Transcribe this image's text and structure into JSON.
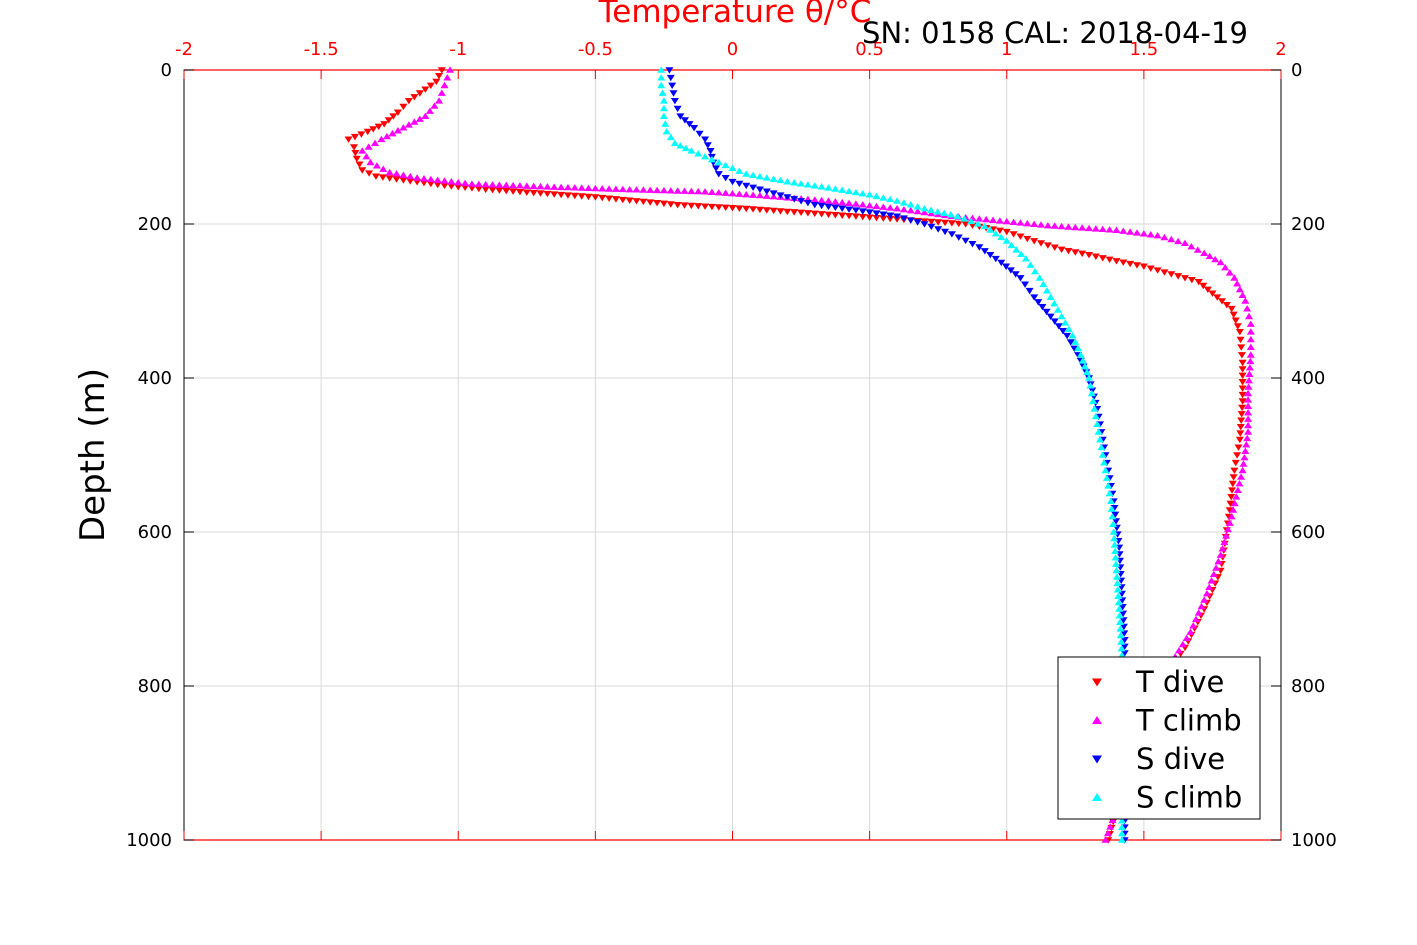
{
  "chart_data": {
    "type": "scatter",
    "title": "SN: 0158  CAL: 2018-04-19",
    "xlabel": "Temperature θ/°C",
    "ylabel": "Depth (m)",
    "xlim": [
      -2,
      2
    ],
    "ylim": [
      0,
      1000
    ],
    "y_reversed": true,
    "grid": true,
    "legend_position": "bottom-right",
    "x_ticks": [
      "-2",
      "-1.5",
      "-1",
      "-0.5",
      "0",
      "0.5",
      "1",
      "1.5",
      "2"
    ],
    "y_ticks": [
      "0",
      "200",
      "400",
      "600",
      "800",
      "1000"
    ],
    "colors": {
      "x_axis": "#ff0000",
      "grid": "#d9d9d9",
      "frame": "#000000"
    },
    "legend": [
      "T dive",
      "T climb",
      "S dive",
      "S climb"
    ],
    "series": [
      {
        "name": "T dive",
        "color": "#ff0000",
        "marker": "triangle-down",
        "points": [
          [
            -1.06,
            0
          ],
          [
            -1.08,
            15
          ],
          [
            -1.12,
            25
          ],
          [
            -1.18,
            40
          ],
          [
            -1.22,
            55
          ],
          [
            -1.27,
            70
          ],
          [
            -1.33,
            80
          ],
          [
            -1.4,
            90
          ],
          [
            -1.38,
            100
          ],
          [
            -1.37,
            115
          ],
          [
            -1.35,
            130
          ],
          [
            -1.3,
            138
          ],
          [
            -1.2,
            143
          ],
          [
            -1.05,
            150
          ],
          [
            -0.9,
            155
          ],
          [
            -0.7,
            160
          ],
          [
            -0.5,
            165
          ],
          [
            -0.35,
            170
          ],
          [
            -0.2,
            175
          ],
          [
            0.05,
            180
          ],
          [
            0.25,
            185
          ],
          [
            0.45,
            190
          ],
          [
            0.65,
            195
          ],
          [
            0.85,
            200
          ],
          [
            1.0,
            210
          ],
          [
            1.1,
            222
          ],
          [
            1.2,
            233
          ],
          [
            1.3,
            240
          ],
          [
            1.4,
            248
          ],
          [
            1.5,
            255
          ],
          [
            1.6,
            265
          ],
          [
            1.7,
            275
          ],
          [
            1.75,
            290
          ],
          [
            1.82,
            310
          ],
          [
            1.85,
            340
          ],
          [
            1.86,
            380
          ],
          [
            1.86,
            430
          ],
          [
            1.85,
            480
          ],
          [
            1.83,
            520
          ],
          [
            1.81,
            580
          ],
          [
            1.78,
            650
          ],
          [
            1.72,
            700
          ],
          [
            1.65,
            750
          ],
          [
            1.57,
            790
          ],
          [
            1.5,
            850
          ],
          [
            1.45,
            910
          ],
          [
            1.4,
            960
          ],
          [
            1.37,
            1000
          ]
        ]
      },
      {
        "name": "T climb",
        "color": "#ff00ff",
        "marker": "triangle-up",
        "points": [
          [
            -1.03,
            0
          ],
          [
            -1.05,
            20
          ],
          [
            -1.07,
            40
          ],
          [
            -1.12,
            60
          ],
          [
            -1.2,
            75
          ],
          [
            -1.28,
            90
          ],
          [
            -1.35,
            105
          ],
          [
            -1.32,
            120
          ],
          [
            -1.25,
            133
          ],
          [
            -1.15,
            140
          ],
          [
            -0.95,
            148
          ],
          [
            -0.65,
            152
          ],
          [
            -0.4,
            155
          ],
          [
            -0.1,
            158
          ],
          [
            0.1,
            163
          ],
          [
            0.35,
            170
          ],
          [
            0.6,
            180
          ],
          [
            0.8,
            190
          ],
          [
            0.95,
            195
          ],
          [
            1.15,
            202
          ],
          [
            1.4,
            208
          ],
          [
            1.55,
            215
          ],
          [
            1.65,
            225
          ],
          [
            1.72,
            238
          ],
          [
            1.78,
            250
          ],
          [
            1.83,
            270
          ],
          [
            1.87,
            300
          ],
          [
            1.89,
            330
          ],
          [
            1.89,
            370
          ],
          [
            1.88,
            420
          ],
          [
            1.88,
            470
          ],
          [
            1.86,
            520
          ],
          [
            1.82,
            580
          ],
          [
            1.78,
            630
          ],
          [
            1.73,
            680
          ],
          [
            1.67,
            730
          ],
          [
            1.6,
            770
          ],
          [
            1.54,
            820
          ],
          [
            1.48,
            880
          ],
          [
            1.42,
            940
          ],
          [
            1.36,
            1000
          ]
        ]
      },
      {
        "name": "S dive",
        "color": "#0000ff",
        "marker": "triangle-down",
        "points": [
          [
            -0.23,
            0
          ],
          [
            -0.22,
            20
          ],
          [
            -0.21,
            40
          ],
          [
            -0.19,
            60
          ],
          [
            -0.14,
            75
          ],
          [
            -0.1,
            90
          ],
          [
            -0.08,
            105
          ],
          [
            -0.07,
            120
          ],
          [
            -0.05,
            135
          ],
          [
            0.0,
            145
          ],
          [
            0.1,
            155
          ],
          [
            0.2,
            165
          ],
          [
            0.3,
            175
          ],
          [
            0.45,
            182
          ],
          [
            0.6,
            190
          ],
          [
            0.7,
            200
          ],
          [
            0.8,
            213
          ],
          [
            0.9,
            230
          ],
          [
            0.98,
            250
          ],
          [
            1.05,
            270
          ],
          [
            1.1,
            295
          ],
          [
            1.16,
            320
          ],
          [
            1.22,
            345
          ],
          [
            1.26,
            370
          ],
          [
            1.3,
            400
          ],
          [
            1.33,
            440
          ],
          [
            1.35,
            480
          ],
          [
            1.37,
            520
          ],
          [
            1.39,
            560
          ],
          [
            1.41,
            620
          ],
          [
            1.42,
            680
          ],
          [
            1.43,
            740
          ],
          [
            1.43,
            800
          ],
          [
            1.43,
            880
          ],
          [
            1.43,
            950
          ],
          [
            1.43,
            1000
          ]
        ]
      },
      {
        "name": "S climb",
        "color": "#00ffff",
        "marker": "triangle-up",
        "points": [
          [
            -0.26,
            0
          ],
          [
            -0.26,
            20
          ],
          [
            -0.25,
            40
          ],
          [
            -0.25,
            60
          ],
          [
            -0.24,
            80
          ],
          [
            -0.21,
            95
          ],
          [
            -0.15,
            105
          ],
          [
            -0.05,
            120
          ],
          [
            0.05,
            135
          ],
          [
            0.2,
            145
          ],
          [
            0.35,
            153
          ],
          [
            0.5,
            162
          ],
          [
            0.6,
            170
          ],
          [
            0.7,
            180
          ],
          [
            0.82,
            190
          ],
          [
            0.92,
            203
          ],
          [
            1.0,
            222
          ],
          [
            1.07,
            245
          ],
          [
            1.12,
            270
          ],
          [
            1.16,
            295
          ],
          [
            1.2,
            320
          ],
          [
            1.24,
            345
          ],
          [
            1.27,
            370
          ],
          [
            1.3,
            400
          ],
          [
            1.32,
            440
          ],
          [
            1.34,
            480
          ],
          [
            1.36,
            520
          ],
          [
            1.38,
            560
          ],
          [
            1.39,
            600
          ],
          [
            1.4,
            650
          ],
          [
            1.41,
            700
          ],
          [
            1.42,
            760
          ],
          [
            1.42,
            820
          ],
          [
            1.42,
            890
          ],
          [
            1.42,
            950
          ],
          [
            1.42,
            1000
          ]
        ]
      }
    ]
  }
}
